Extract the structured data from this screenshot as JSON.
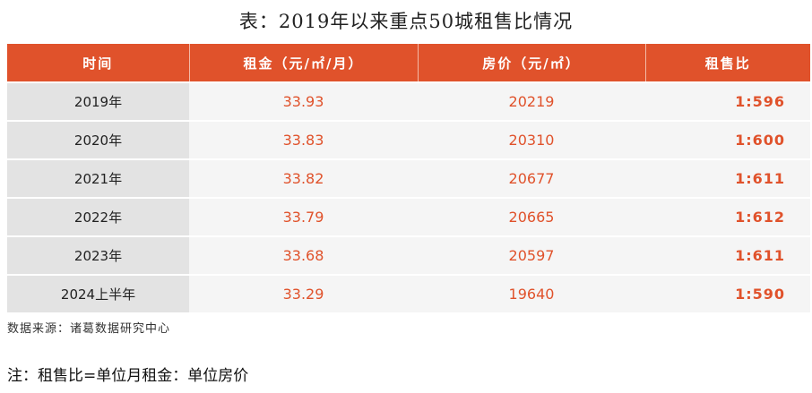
{
  "title": "表：2019年以来重点50城租售比情况",
  "table": {
    "headers": [
      "时间",
      "租金（元/㎡/月）",
      "房价（元/㎡）",
      "租售比"
    ],
    "rows": [
      {
        "period": "2019年",
        "rent": "33.93",
        "price": "20219",
        "ratio": "1:596"
      },
      {
        "period": "2020年",
        "rent": "33.83",
        "price": "20310",
        "ratio": "1:600"
      },
      {
        "period": "2021年",
        "rent": "33.82",
        "price": "20677",
        "ratio": "1:611"
      },
      {
        "period": "2022年",
        "rent": "33.79",
        "price": "20665",
        "ratio": "1:612"
      },
      {
        "period": "2023年",
        "rent": "33.68",
        "price": "20597",
        "ratio": "1:611"
      },
      {
        "period": "2024上半年",
        "rent": "33.29",
        "price": "19640",
        "ratio": "1:590"
      }
    ]
  },
  "source": "数据来源：诸葛数据研究中心",
  "note": "注：租售比=单位月租金：单位房价",
  "colors": {
    "accent": "#E0522B",
    "header_text": "#ffffff",
    "year_cell_bg": "#E3E3E3",
    "value_cell_bg": "#F5F5F5"
  }
}
